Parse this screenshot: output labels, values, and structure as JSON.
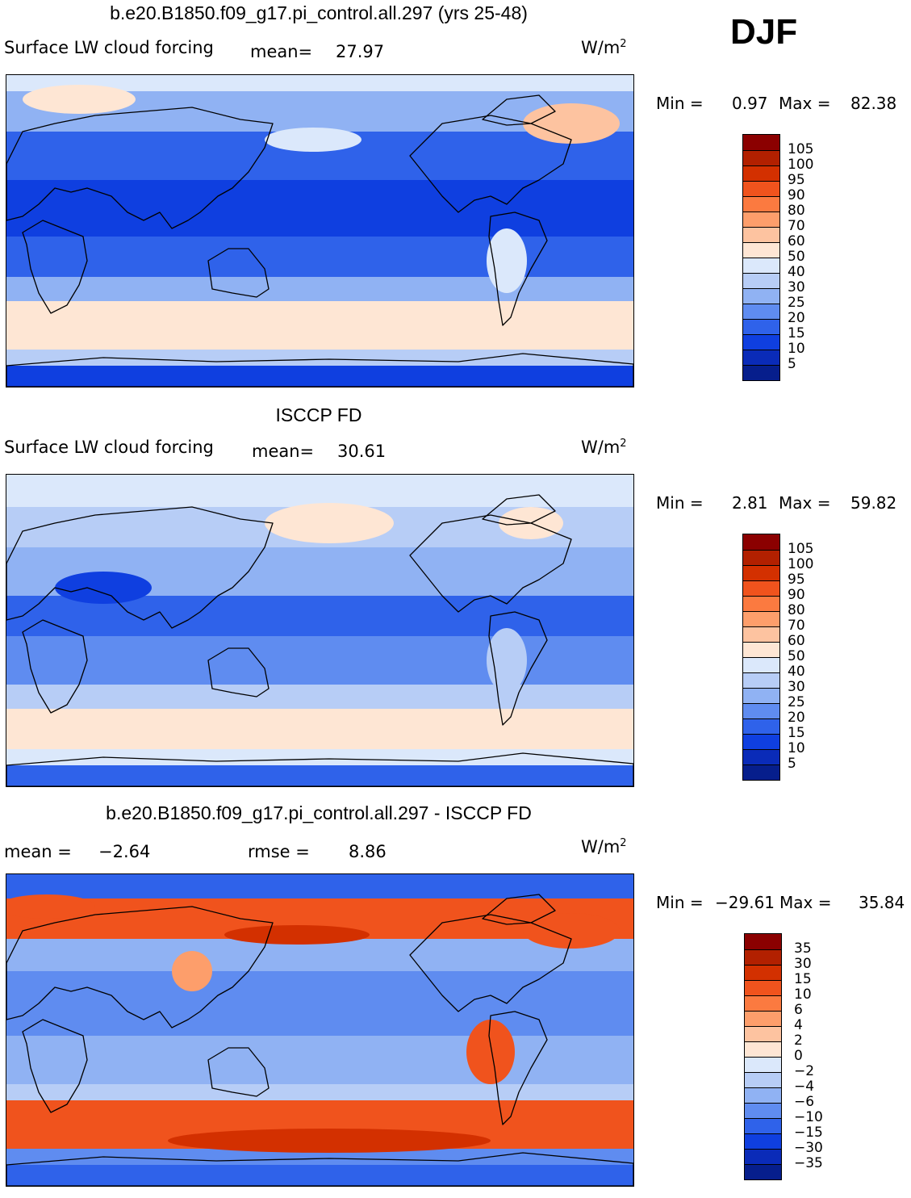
{
  "season": "DJF",
  "panels": [
    {
      "title": "b.e20.B1850.f09_g17.pi_control.all.297 (yrs 25-48)",
      "variable": "Surface LW cloud forcing",
      "mean_label": "mean=",
      "mean_value": "27.97",
      "units": "W/m",
      "units_sup": "2",
      "min_label": "Min =",
      "min_value": "0.97",
      "max_label": "Max =",
      "max_value": "82.38",
      "levels": [
        "105",
        "100",
        "95",
        "90",
        "80",
        "70",
        "60",
        "50",
        "40",
        "30",
        "25",
        "20",
        "15",
        "10",
        "5"
      ],
      "colors": [
        "#8b0000",
        "#b22000",
        "#d33000",
        "#f0531d",
        "#fb7a40",
        "#fd9e6b",
        "#fdc3a0",
        "#fee6d4",
        "#dbe8fb",
        "#b7cdf6",
        "#90b2f3",
        "#5f8cf0",
        "#2f62ea",
        "#0f3fe0",
        "#0a2bb8",
        "#061e8c"
      ],
      "field": "model"
    },
    {
      "title": "ISCCP FD",
      "variable": "Surface LW cloud forcing",
      "mean_label": "mean=",
      "mean_value": "30.61",
      "units": "W/m",
      "units_sup": "2",
      "min_label": "Min =",
      "min_value": "2.81",
      "max_label": "Max =",
      "max_value": "59.82",
      "levels": [
        "105",
        "100",
        "95",
        "90",
        "80",
        "70",
        "60",
        "50",
        "40",
        "30",
        "25",
        "20",
        "15",
        "10",
        "5"
      ],
      "colors": [
        "#8b0000",
        "#b22000",
        "#d33000",
        "#f0531d",
        "#fb7a40",
        "#fd9e6b",
        "#fdc3a0",
        "#fee6d4",
        "#dbe8fb",
        "#b7cdf6",
        "#90b2f3",
        "#5f8cf0",
        "#2f62ea",
        "#0f3fe0",
        "#0a2bb8",
        "#061e8c"
      ],
      "field": "obs"
    },
    {
      "title": "b.e20.B1850.f09_g17.pi_control.all.297 - ISCCP FD",
      "mean_label": "mean =",
      "mean_value": "−2.64",
      "rmse_label": "rmse =",
      "rmse_value": "8.86",
      "units": "W/m",
      "units_sup": "2",
      "min_label": "Min =",
      "min_value": "−29.61",
      "max_label": "Max =",
      "max_value": "35.84",
      "levels": [
        "35",
        "30",
        "15",
        "10",
        "6",
        "4",
        "2",
        "0",
        "−2",
        "−4",
        "−6",
        "−10",
        "−15",
        "−30",
        "−35"
      ],
      "colors": [
        "#8b0000",
        "#b22000",
        "#d33000",
        "#f0531d",
        "#fb7a40",
        "#fd9e6b",
        "#fdc3a0",
        "#fee6d4",
        "#dbe8fb",
        "#b7cdf6",
        "#90b2f3",
        "#5f8cf0",
        "#2f62ea",
        "#0f3fe0",
        "#0a2bb8",
        "#061e8c"
      ],
      "field": "diff"
    }
  ]
}
